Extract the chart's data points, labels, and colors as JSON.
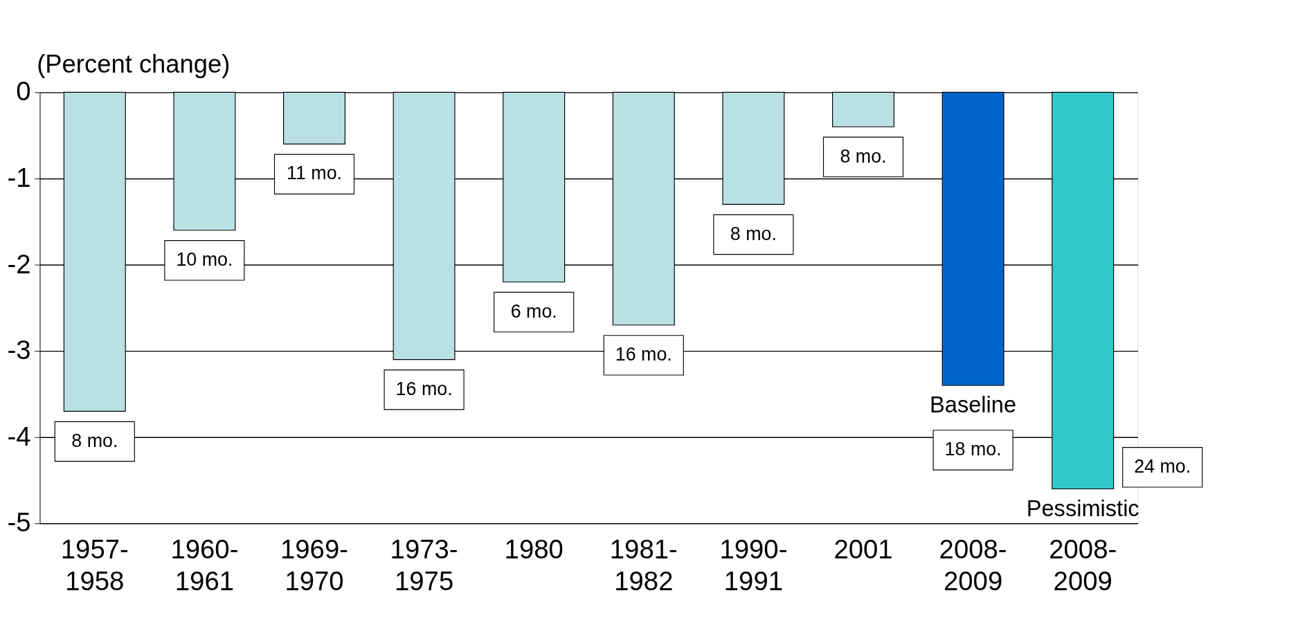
{
  "chart_data": {
    "type": "bar",
    "ylabel": "(Percent change)",
    "categories": [
      "1957-1958",
      "1960-1961",
      "1969-1970",
      "1973-1975",
      "1980",
      "1981-1982",
      "1990-1991",
      "2001",
      "2008-2009",
      "2008-2009"
    ],
    "series": [
      {
        "color": "#b9e0e4",
        "values": [
          -3.7,
          -1.6,
          -0.6,
          -3.1,
          -2.2,
          -2.7,
          -1.3,
          -0.4,
          null,
          null
        ]
      },
      {
        "name": "Baseline",
        "color": "#0066cc",
        "values": [
          null,
          null,
          null,
          null,
          null,
          null,
          null,
          null,
          -3.4,
          null
        ]
      },
      {
        "name": "Pessimistic",
        "color": "#33c8c8",
        "values": [
          null,
          null,
          null,
          null,
          null,
          null,
          null,
          null,
          null,
          -4.6
        ]
      }
    ],
    "ylim": [
      -5,
      0
    ],
    "yticks": [
      -5,
      -4,
      -3,
      -2,
      -1,
      0
    ],
    "grid": "y",
    "annotations": [
      "8 mo.",
      "10 mo.",
      "11 mo.",
      "16 mo.",
      "6 mo.",
      "16 mo.",
      "8 mo.",
      "8 mo.",
      "18 mo.",
      "24 mo."
    ]
  }
}
